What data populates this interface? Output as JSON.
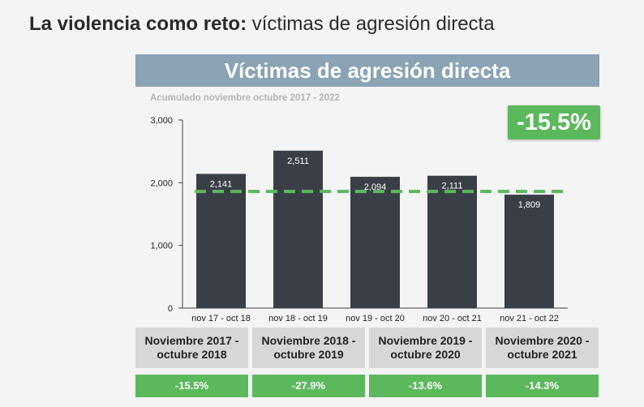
{
  "slide_title": {
    "bold": "La violencia como reto:",
    "light": "víctimas de agresión directa"
  },
  "banner_title": "Víctimas de agresión directa",
  "chart_subtitle": "Acumulado noviembre octubre 2017 - 2022",
  "change_badge": "-15.5%",
  "colors": {
    "bar": "#3a3f47",
    "reference_line": "#5cb85c",
    "banner": "#8ba3b3",
    "green": "#5cb85c",
    "header_cell": "#d7d7d7"
  },
  "chart_data": {
    "type": "bar",
    "categories": [
      "nov 17 - oct 18",
      "nov 18 - oct 19",
      "nov 19 - oct 20",
      "nov 20 - oct 21",
      "nov 21 - oct 22"
    ],
    "values": [
      2141,
      2511,
      2094,
      2111,
      1809
    ],
    "value_labels": [
      "2,141",
      "2,511",
      "2,094",
      "2,111",
      "1,809"
    ],
    "ylim": [
      0,
      3000
    ],
    "yticks": [
      0,
      1000,
      2000,
      3000
    ],
    "ytick_labels": [
      "0",
      "1,000",
      "2,000",
      "3,000"
    ],
    "reference_line": {
      "value": 1860,
      "style": "dashed"
    },
    "grid": false
  },
  "table": {
    "periods": [
      "Noviembre 2017 - octubre 2018",
      "Noviembre 2018 - octubre 2019",
      "Noviembre 2019 - octubre 2020",
      "Noviembre 2020 - octubre 2021"
    ],
    "changes": [
      "-15.5%",
      "-27.9%",
      "-13.6%",
      "-14.3%"
    ]
  }
}
